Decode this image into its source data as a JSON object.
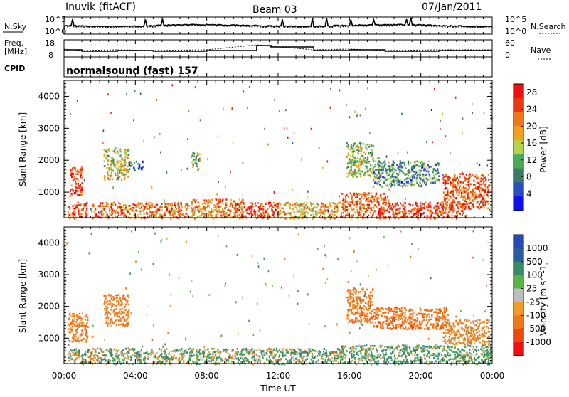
{
  "header": {
    "station": "Inuvik (fitACF)",
    "beam": "Beam 03",
    "date": "07/Jan/2011"
  },
  "panels": {
    "nsky_label": "N.Sky",
    "nsearch_label": "N.Search",
    "noise_left_ticks": [
      "10^5",
      "10^0"
    ],
    "noise_right_ticks": [
      "10^5",
      "10^0"
    ],
    "freq_label": "Freq.",
    "freq_unit": "[MHz]",
    "freq_ticks": [
      "18",
      "8"
    ],
    "nave_label": "Nave",
    "nave_ticks": [
      "60",
      "0"
    ],
    "cpid_label": "CPID",
    "cpid_text": "normalsound (fast) 157"
  },
  "colors": {
    "power": [
      "#1010ee",
      "#2a4fbf",
      "#3b7a6b",
      "#4caa58",
      "#b6d24a",
      "#f2a020",
      "#f07818",
      "#e83a10",
      "#ee1010"
    ],
    "velocity": [
      "#2848b8",
      "#2a5e9a",
      "#3a8a6a",
      "#58b448",
      "#bdbdbd",
      "#f09a28",
      "#f07818",
      "#ec4810",
      "#ee1010"
    ]
  },
  "chart_data": [
    {
      "type": "heatmap",
      "name": "power",
      "ylabel": "Slant Range [km]",
      "y_ticks": [
        "1000",
        "2000",
        "3000",
        "4000"
      ],
      "ylim": [
        200,
        4500
      ],
      "colorbar_label": "Power [dB]",
      "colorbar_ticks": [
        "4",
        "8",
        "12",
        "16",
        "20",
        "24",
        "28"
      ],
      "colorbar_range": [
        0,
        30
      ],
      "patches": [
        {
          "t": [
            0.2,
            1.3
          ],
          "r": [
            200,
            700
          ],
          "v": 25
        },
        {
          "t": [
            0.3,
            1.0
          ],
          "r": [
            900,
            1800
          ],
          "v": 26
        },
        {
          "t": [
            2.2,
            3.6
          ],
          "r": [
            1400,
            2400
          ],
          "v": 16
        },
        {
          "t": [
            3.6,
            4.4
          ],
          "r": [
            1700,
            2000
          ],
          "v": 6
        },
        {
          "t": [
            1.5,
            7.0
          ],
          "r": [
            200,
            700
          ],
          "v": 22
        },
        {
          "t": [
            7.1,
            7.6
          ],
          "r": [
            1700,
            2300
          ],
          "v": 12
        },
        {
          "t": [
            7.0,
            10.0
          ],
          "r": [
            200,
            800
          ],
          "v": 20
        },
        {
          "t": [
            9.5,
            12.0
          ],
          "r": [
            200,
            700
          ],
          "v": 26
        },
        {
          "t": [
            12.0,
            15.5
          ],
          "r": [
            200,
            700
          ],
          "v": 18
        },
        {
          "t": [
            15.5,
            18.0
          ],
          "r": [
            200,
            1000
          ],
          "v": 22
        },
        {
          "t": [
            15.8,
            17.3
          ],
          "r": [
            1500,
            2600
          ],
          "v": 14
        },
        {
          "t": [
            17.3,
            21.0
          ],
          "r": [
            1200,
            2000
          ],
          "v": 10
        },
        {
          "t": [
            17.5,
            22.5
          ],
          "r": [
            200,
            700
          ],
          "v": 26
        },
        {
          "t": [
            21.2,
            23.8
          ],
          "r": [
            500,
            1600
          ],
          "v": 24
        }
      ]
    },
    {
      "type": "heatmap",
      "name": "velocity",
      "xlabel": "Time UT",
      "x_ticks": [
        "00:00",
        "04:00",
        "08:00",
        "12:00",
        "16:00",
        "20:00",
        "00:00"
      ],
      "ylabel": "Slant Range [km]",
      "y_ticks": [
        "1000",
        "2000",
        "3000",
        "4000"
      ],
      "ylim": [
        200,
        4500
      ],
      "colorbar_label": "Velocity [m s^-1]",
      "colorbar_ticks": [
        "1000",
        "500",
        "100",
        "25",
        "-25",
        "-100",
        "-500",
        "-1000"
      ],
      "patches": [
        {
          "t": [
            0.2,
            1.3
          ],
          "r": [
            900,
            1800
          ],
          "v": -300
        },
        {
          "t": [
            2.2,
            3.6
          ],
          "r": [
            1400,
            2400
          ],
          "v": -250
        },
        {
          "t": [
            0.2,
            7.0
          ],
          "r": [
            200,
            700
          ],
          "v": 80
        },
        {
          "t": [
            7.0,
            15.5
          ],
          "r": [
            200,
            700
          ],
          "v": 120
        },
        {
          "t": [
            15.8,
            17.3
          ],
          "r": [
            1500,
            2600
          ],
          "v": -300
        },
        {
          "t": [
            17.3,
            21.5
          ],
          "r": [
            1300,
            2000
          ],
          "v": -350
        },
        {
          "t": [
            15.5,
            23.9
          ],
          "r": [
            200,
            800
          ],
          "v": 150
        },
        {
          "t": [
            21.2,
            23.8
          ],
          "r": [
            800,
            1600
          ],
          "v": -200
        }
      ]
    }
  ]
}
